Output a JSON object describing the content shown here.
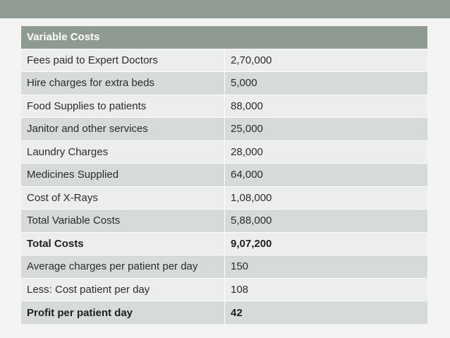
{
  "table": {
    "header": "Variable Costs",
    "rows": [
      {
        "label": "Fees paid to Expert Doctors",
        "value": "2,70,000",
        "bold": false
      },
      {
        "label": "Hire charges for extra beds",
        "value": "5,000",
        "bold": false
      },
      {
        "label": "Food Supplies to patients",
        "value": "88,000",
        "bold": false
      },
      {
        "label": "Janitor and other services",
        "value": "25,000",
        "bold": false
      },
      {
        "label": "Laundry Charges",
        "value": "28,000",
        "bold": false
      },
      {
        "label": "Medicines Supplied",
        "value": "64,000",
        "bold": false
      },
      {
        "label": "Cost of X-Rays",
        "value": "1,08,000",
        "bold": false
      },
      {
        "label": "Total Variable Costs",
        "value": "5,88,000",
        "bold": false
      },
      {
        "label": "Total Costs",
        "value": "9,07,200",
        "bold": true
      },
      {
        "label": "Average charges per patient per day",
        "value": "150",
        "bold": false
      },
      {
        "label": "Less: Cost patient per day",
        "value": "108",
        "bold": false
      },
      {
        "label": "Profit per patient day",
        "value": "42",
        "bold": true
      }
    ]
  },
  "colors": {
    "top_bar": "#909c92",
    "header_bg": "#8f9b90",
    "row_light": "#eceeec",
    "row_dark": "#d7dbd8"
  }
}
